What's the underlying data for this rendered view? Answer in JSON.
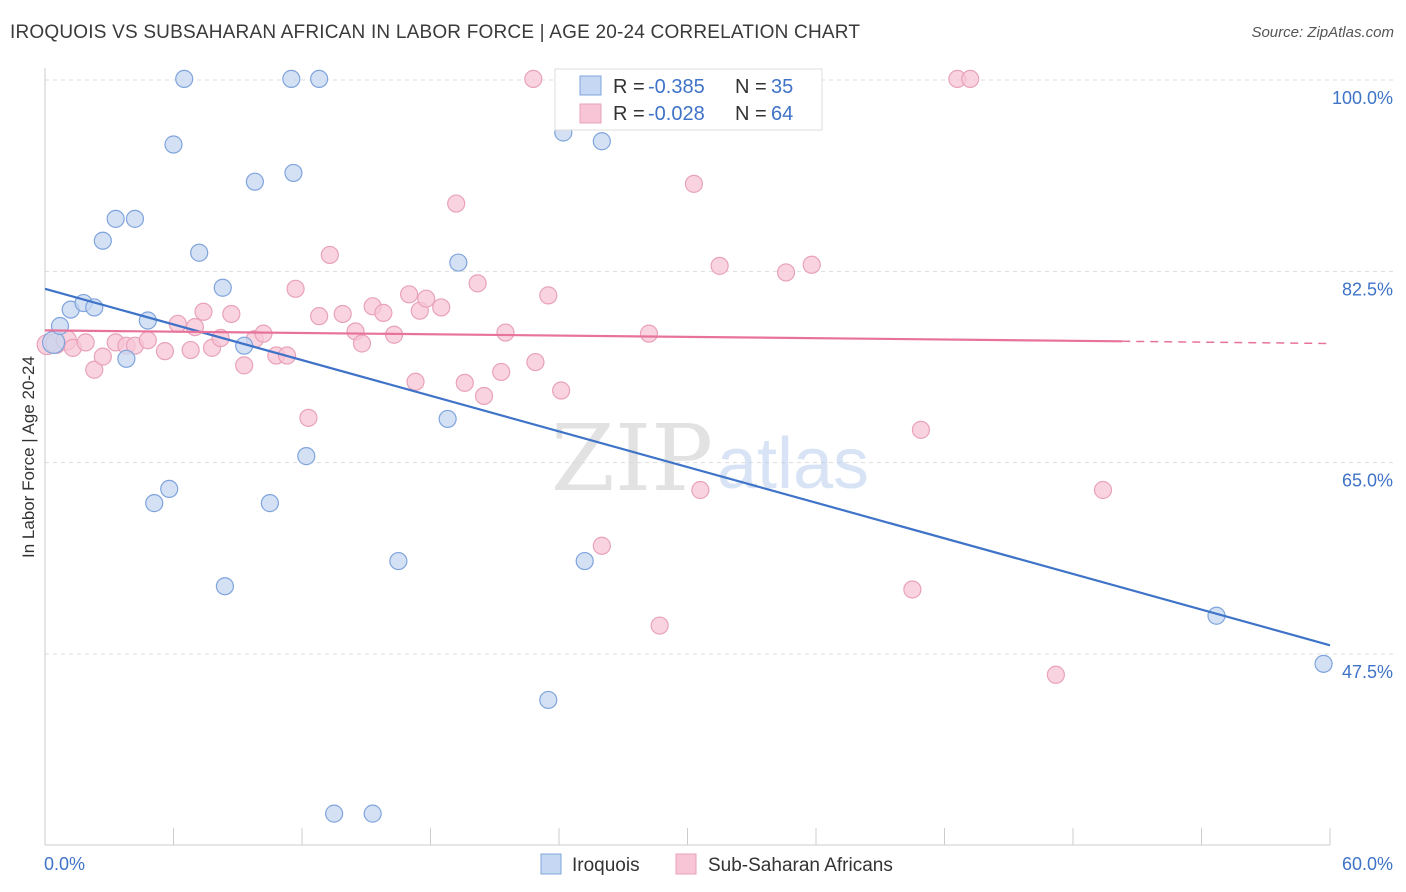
{
  "title": "IROQUOIS VS SUBSAHARAN AFRICAN IN LABOR FORCE | AGE 20-24 CORRELATION CHART",
  "source": "Source: ZipAtlas.com",
  "watermark": {
    "zip": "ZIP",
    "atlas": "atlas"
  },
  "colors": {
    "blue": "#3f73c8",
    "blue_fill": "#c5d7f2",
    "pink": "#e8739a",
    "pink_fill": "#f7c5d5",
    "grid": "#dddddd"
  },
  "legend": {
    "r_label": "R =",
    "n_label": "N =",
    "rows": [
      {
        "r": "-0.385",
        "n": "35"
      },
      {
        "r": "-0.028",
        "n": "64"
      }
    ]
  },
  "chart_data": {
    "type": "scatter",
    "title": "IROQUOIS VS SUBSAHARAN AFRICAN IN LABOR FORCE | AGE 20-24 CORRELATION CHART",
    "xlabel": "",
    "ylabel": "In Labor Force | Age 20-24",
    "xlim": [
      0,
      60
    ],
    "ylim": [
      30,
      102
    ],
    "x_tick_labels": [
      "0.0%",
      "60.0%"
    ],
    "y_ticks": [
      47.5,
      65.0,
      82.5,
      100.0
    ],
    "y_tick_labels": [
      "47.5%",
      "65.0%",
      "82.5%",
      "100.0%"
    ],
    "grid": true,
    "legend_position": "top-center",
    "series": [
      {
        "name": "Iroquois",
        "color": "#3f73c8",
        "trend": {
          "x": [
            0,
            60
          ],
          "y": [
            80.9,
            48.3
          ]
        },
        "points": [
          [
            0.4,
            76.0
          ],
          [
            0.7,
            77.5
          ],
          [
            1.2,
            79.0
          ],
          [
            1.8,
            79.6
          ],
          [
            2.3,
            79.2
          ],
          [
            2.7,
            85.3
          ],
          [
            3.3,
            87.3
          ],
          [
            3.8,
            74.5
          ],
          [
            4.2,
            87.3
          ],
          [
            4.8,
            78.0
          ],
          [
            5.1,
            61.3
          ],
          [
            5.8,
            62.6
          ],
          [
            6.0,
            94.1
          ],
          [
            6.5,
            100.1
          ],
          [
            7.2,
            84.2
          ],
          [
            8.3,
            81.0
          ],
          [
            8.4,
            53.7
          ],
          [
            9.3,
            75.7
          ],
          [
            9.8,
            90.7
          ],
          [
            10.5,
            61.3
          ],
          [
            11.5,
            100.1
          ],
          [
            11.6,
            91.5
          ],
          [
            12.2,
            65.6
          ],
          [
            12.8,
            100.1
          ],
          [
            13.5,
            32.9
          ],
          [
            15.3,
            32.9
          ],
          [
            16.5,
            56.0
          ],
          [
            18.8,
            69.0
          ],
          [
            19.3,
            83.3
          ],
          [
            23.5,
            43.3
          ],
          [
            24.2,
            95.2
          ],
          [
            25.2,
            56.0
          ],
          [
            26.0,
            94.4
          ],
          [
            54.7,
            51.0
          ],
          [
            59.7,
            46.6
          ]
        ]
      },
      {
        "name": "Sub-Saharan Africans",
        "color": "#e8739a",
        "trend": {
          "x": [
            0,
            50.3
          ],
          "y": [
            77.1,
            76.1
          ]
        },
        "trend_dashed": {
          "x": [
            50.3,
            60
          ],
          "y": [
            76.1,
            75.9
          ]
        },
        "points": [
          [
            0.1,
            75.8
          ],
          [
            0.5,
            75.9
          ],
          [
            1.0,
            76.2
          ],
          [
            1.3,
            75.5
          ],
          [
            1.9,
            76.0
          ],
          [
            2.3,
            73.5
          ],
          [
            2.7,
            74.7
          ],
          [
            3.3,
            76.0
          ],
          [
            3.8,
            75.7
          ],
          [
            4.2,
            75.7
          ],
          [
            4.8,
            76.2
          ],
          [
            5.6,
            75.2
          ],
          [
            6.2,
            77.7
          ],
          [
            6.8,
            75.3
          ],
          [
            7.0,
            77.4
          ],
          [
            7.4,
            78.8
          ],
          [
            7.8,
            75.5
          ],
          [
            8.2,
            76.4
          ],
          [
            8.7,
            78.6
          ],
          [
            9.3,
            73.9
          ],
          [
            9.8,
            76.3
          ],
          [
            10.2,
            76.8
          ],
          [
            10.8,
            74.8
          ],
          [
            11.3,
            74.8
          ],
          [
            11.7,
            80.9
          ],
          [
            12.3,
            69.1
          ],
          [
            12.8,
            78.4
          ],
          [
            13.3,
            84.0
          ],
          [
            13.9,
            78.6
          ],
          [
            14.5,
            77.0
          ],
          [
            14.8,
            75.9
          ],
          [
            15.3,
            79.3
          ],
          [
            15.8,
            78.7
          ],
          [
            16.3,
            76.7
          ],
          [
            17.0,
            80.4
          ],
          [
            17.3,
            72.4
          ],
          [
            17.5,
            78.9
          ],
          [
            17.8,
            80.0
          ],
          [
            18.5,
            79.2
          ],
          [
            19.2,
            88.7
          ],
          [
            19.6,
            72.3
          ],
          [
            20.2,
            81.4
          ],
          [
            20.5,
            71.1
          ],
          [
            21.3,
            73.3
          ],
          [
            21.5,
            76.9
          ],
          [
            22.8,
            100.1
          ],
          [
            22.9,
            74.2
          ],
          [
            23.5,
            80.3
          ],
          [
            24.1,
            71.6
          ],
          [
            26.0,
            57.4
          ],
          [
            28.0,
            100.1
          ],
          [
            28.2,
            76.8
          ],
          [
            28.7,
            50.1
          ],
          [
            30.3,
            90.5
          ],
          [
            30.6,
            62.5
          ],
          [
            31.5,
            83.0
          ],
          [
            34.6,
            82.4
          ],
          [
            35.8,
            83.1
          ],
          [
            40.5,
            53.4
          ],
          [
            40.9,
            68.0
          ],
          [
            42.6,
            100.1
          ],
          [
            43.2,
            100.1
          ],
          [
            47.2,
            45.6
          ],
          [
            49.4,
            62.5
          ]
        ]
      }
    ]
  }
}
